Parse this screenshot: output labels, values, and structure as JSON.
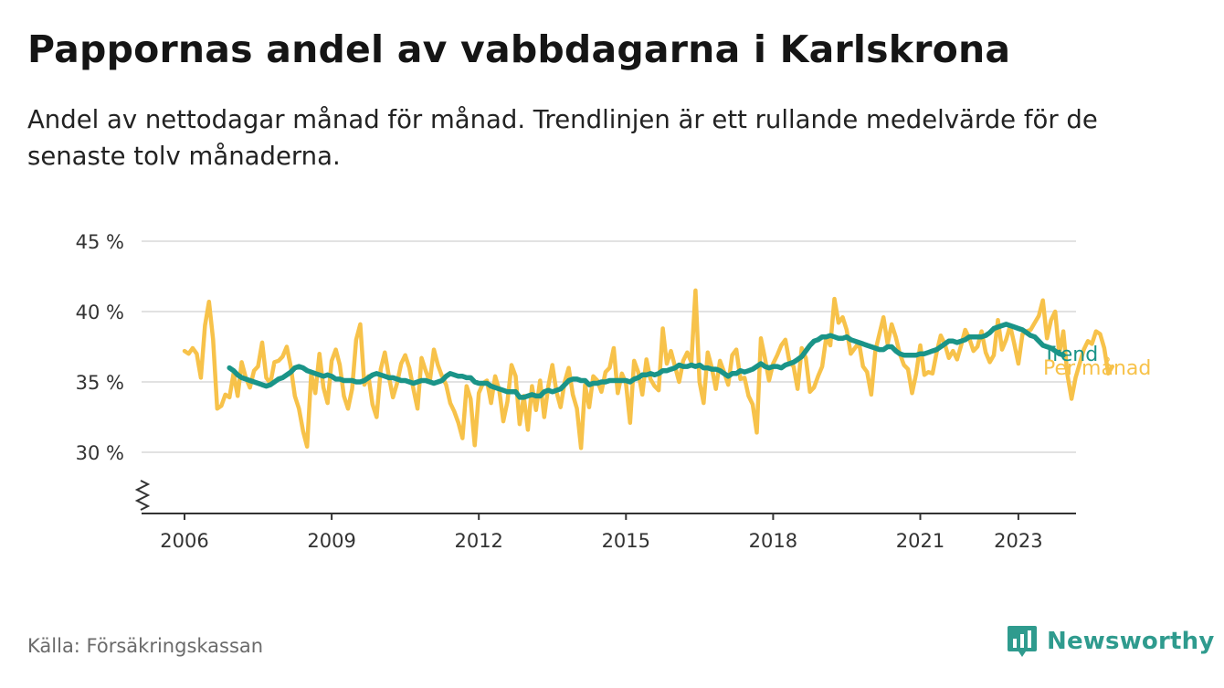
{
  "header": {
    "title": "Pappornas andel av vabbdagarna i Karlskrona",
    "subtitle": "Andel av nettodagar månad för månad. Trendlinjen är ett rullande medelvärde för de senaste tolv månaderna."
  },
  "footer": {
    "source": "Källa: Försäkringskassan",
    "brand": "Newsworthy"
  },
  "colors": {
    "trend": "#1a9488",
    "monthly": "#f7c24a",
    "grid": "#d9d9d9",
    "axis": "#333333",
    "brand": "#2f9b8e"
  },
  "icons": [
    "chart-logo-icon",
    "axis-break-icon"
  ],
  "chart_data": {
    "type": "line",
    "title": "Pappornas andel av vabbdagarna i Karlskrona",
    "xlabel": "",
    "ylabel": "",
    "unit": "%",
    "xlim": [
      2005.75,
      2024.0
    ],
    "ylim": [
      25.5,
      45
    ],
    "y_ticks": [
      30,
      35,
      40,
      45
    ],
    "y_tick_labels": [
      "30 %",
      "35 %",
      "40 %",
      "45 %"
    ],
    "x_ticks": [
      2006,
      2009,
      2012,
      2015,
      2018,
      2021,
      2023
    ],
    "x_tick_labels": [
      "2006",
      "2009",
      "2012",
      "2015",
      "2018",
      "2021",
      "2023"
    ],
    "grid": true,
    "legend": "right end of lines",
    "series": [
      {
        "name": "Per månad",
        "start": 2006.0,
        "step": 0.0833333,
        "values": [
          37.2,
          37.0,
          37.4,
          37.0,
          35.3,
          39.0,
          40.7,
          38.0,
          33.1,
          33.3,
          34.1,
          33.9,
          35.6,
          34.0,
          36.4,
          35.3,
          34.6,
          35.8,
          36.1,
          37.8,
          35.3,
          34.9,
          36.4,
          36.5,
          36.8,
          37.5,
          36.1,
          34.0,
          33.1,
          31.5,
          30.4,
          35.6,
          34.2,
          37.0,
          34.6,
          33.5,
          36.5,
          37.3,
          36.2,
          34.0,
          33.1,
          34.5,
          38.0,
          39.1,
          34.8,
          35.4,
          33.4,
          32.5,
          35.9,
          37.1,
          35.4,
          33.9,
          34.9,
          36.3,
          36.9,
          36.0,
          34.5,
          33.1,
          36.7,
          35.8,
          35.0,
          37.3,
          36.2,
          35.4,
          34.8,
          33.5,
          32.9,
          32.1,
          31.0,
          34.7,
          33.8,
          30.5,
          34.2,
          34.9,
          35.1,
          33.5,
          35.4,
          34.4,
          32.2,
          33.6,
          36.2,
          35.4,
          32.0,
          34.0,
          31.6,
          34.7,
          33.0,
          35.1,
          32.5,
          34.7,
          36.2,
          34.3,
          33.2,
          35.0,
          36.0,
          34.1,
          33.1,
          30.3,
          34.8,
          33.2,
          35.4,
          35.1,
          34.3,
          35.7,
          36.0,
          37.4,
          34.2,
          35.6,
          34.9,
          32.1,
          36.5,
          35.7,
          34.1,
          36.6,
          35.2,
          34.7,
          34.4,
          38.8,
          36.3,
          37.2,
          36.1,
          35.0,
          36.5,
          37.1,
          36.4,
          41.5,
          35.0,
          33.5,
          37.1,
          36.0,
          34.5,
          36.5,
          35.7,
          34.8,
          36.9,
          37.3,
          35.2,
          35.3,
          34.0,
          33.4,
          31.4,
          38.1,
          36.7,
          35.1,
          36.3,
          36.9,
          37.6,
          38.0,
          36.4,
          36.1,
          34.5,
          37.4,
          36.7,
          34.3,
          34.6,
          35.4,
          36.1,
          38.2,
          37.6,
          40.9,
          39.2,
          39.6,
          38.7,
          37.0,
          37.4,
          37.8,
          36.1,
          35.7,
          34.1,
          37.2,
          38.4,
          39.6,
          37.7,
          39.1,
          38.2,
          37.0,
          36.2,
          35.9,
          34.2,
          35.6,
          37.6,
          35.5,
          35.7,
          35.6,
          37.1,
          38.3,
          37.7,
          36.7,
          37.2,
          36.6,
          37.6,
          38.7,
          38.1,
          37.2,
          37.5,
          38.6,
          37.1,
          36.4,
          36.9,
          39.4,
          37.3,
          38.0,
          39.0,
          37.7,
          36.3,
          38.4,
          38.6,
          38.7,
          39.2,
          39.7,
          40.8,
          38.1,
          39.4,
          40.0,
          37.0,
          38.6,
          35.5,
          33.8,
          35.3,
          36.3,
          37.3,
          37.9,
          37.7,
          38.6,
          38.4,
          37.4,
          35.6,
          36.1
        ]
      },
      {
        "name": "Trend",
        "start": 2006.917,
        "step": 0.0833333,
        "values": [
          36.0,
          35.8,
          35.5,
          35.3,
          35.2,
          35.1,
          35.0,
          34.9,
          34.8,
          34.7,
          34.8,
          35.0,
          35.2,
          35.3,
          35.5,
          35.7,
          36.0,
          36.1,
          36.0,
          35.8,
          35.7,
          35.6,
          35.5,
          35.4,
          35.5,
          35.4,
          35.2,
          35.2,
          35.1,
          35.1,
          35.1,
          35.0,
          35.0,
          35.1,
          35.3,
          35.5,
          35.6,
          35.5,
          35.4,
          35.3,
          35.3,
          35.2,
          35.1,
          35.1,
          35.0,
          34.9,
          35.0,
          35.1,
          35.1,
          35.0,
          34.9,
          35.0,
          35.1,
          35.4,
          35.6,
          35.5,
          35.4,
          35.4,
          35.3,
          35.3,
          35.0,
          34.9,
          34.9,
          34.9,
          34.7,
          34.6,
          34.5,
          34.4,
          34.3,
          34.3,
          34.3,
          33.9,
          33.9,
          34.0,
          34.1,
          34.0,
          34.0,
          34.3,
          34.4,
          34.3,
          34.4,
          34.5,
          34.8,
          35.1,
          35.2,
          35.2,
          35.1,
          35.1,
          34.8,
          34.9,
          34.9,
          35.0,
          35.0,
          35.1,
          35.1,
          35.1,
          35.1,
          35.1,
          35.0,
          35.2,
          35.3,
          35.5,
          35.5,
          35.6,
          35.5,
          35.6,
          35.8,
          35.8,
          35.9,
          36.0,
          36.2,
          36.1,
          36.1,
          36.2,
          36.1,
          36.2,
          36.0,
          36.0,
          35.9,
          35.9,
          35.8,
          35.6,
          35.4,
          35.6,
          35.6,
          35.8,
          35.7,
          35.8,
          35.9,
          36.1,
          36.3,
          36.1,
          36.0,
          36.1,
          36.1,
          36.0,
          36.2,
          36.3,
          36.4,
          36.6,
          36.8,
          37.2,
          37.6,
          37.9,
          38.0,
          38.2,
          38.2,
          38.3,
          38.2,
          38.1,
          38.1,
          38.2,
          38.0,
          37.9,
          37.8,
          37.7,
          37.6,
          37.5,
          37.4,
          37.3,
          37.3,
          37.5,
          37.5,
          37.2,
          37.0,
          36.9,
          36.9,
          36.9,
          36.9,
          37.0,
          37.0,
          37.1,
          37.2,
          37.3,
          37.5,
          37.7,
          37.9,
          37.9,
          37.8,
          37.9,
          38.0,
          38.2,
          38.2,
          38.2,
          38.2,
          38.3,
          38.5,
          38.8,
          38.9,
          39.0,
          39.1,
          39.0,
          38.9,
          38.8,
          38.7,
          38.5,
          38.3,
          38.2,
          37.9,
          37.6,
          37.5,
          37.4,
          37.2,
          37.0,
          36.9
        ]
      }
    ]
  }
}
